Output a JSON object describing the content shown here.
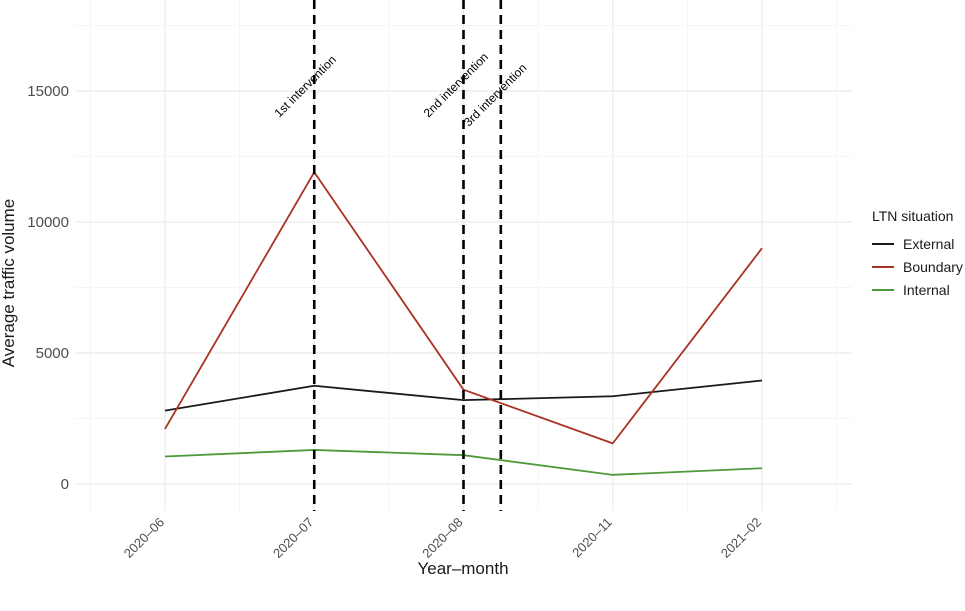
{
  "chart_data": {
    "type": "line",
    "xlabel": "Year–month",
    "ylabel": "Average traffic volume",
    "categories": [
      "2020–06",
      "2020–07",
      "2020–08",
      "2020–11",
      "2021–02"
    ],
    "ylim": [
      -800,
      18500
    ],
    "yticks": [
      0,
      5000,
      10000,
      15000
    ],
    "ytick_labels": [
      "0",
      "5000",
      "10000",
      "15000"
    ],
    "grid": true,
    "legend": {
      "title": "LTN situation",
      "position": "right"
    },
    "series": [
      {
        "name": "External",
        "color": "#1a1a1a",
        "values": [
          2800,
          3750,
          3200,
          3350,
          3950
        ]
      },
      {
        "name": "Boundary",
        "color": "#a93226",
        "values": [
          2100,
          11900,
          3600,
          1550,
          9000
        ]
      },
      {
        "name": "Internal",
        "color": "#4e9a3a",
        "values": [
          1050,
          1300,
          1100,
          350,
          600
        ]
      }
    ],
    "annotations": [
      {
        "label": "1st intervention",
        "x": "2020–07"
      },
      {
        "label": "2nd intervention",
        "x": "2020–08"
      },
      {
        "label": "3rd intervention",
        "x": "2020–08 + 0.25"
      }
    ]
  }
}
